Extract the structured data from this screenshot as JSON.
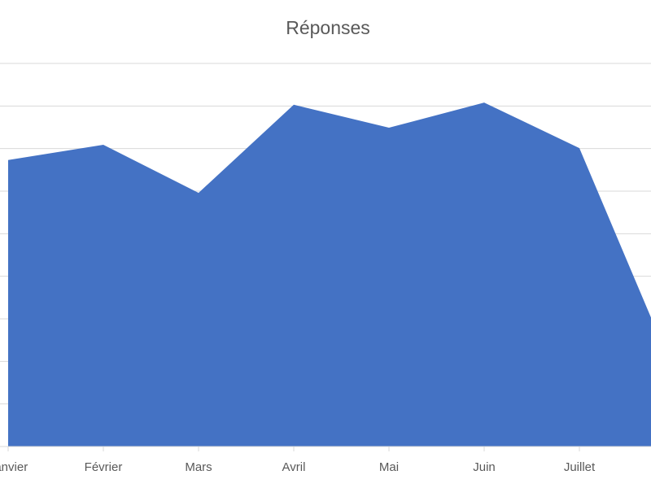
{
  "chart_data": {
    "type": "area",
    "title": "Réponses",
    "categories": [
      "Janvier",
      "Février",
      "Mars",
      "Avril",
      "Mai",
      "Juin",
      "Juillet",
      null
    ],
    "values": [
      6.73,
      7.09,
      5.96,
      8.03,
      7.49,
      8.08,
      7.01,
      1.72
    ],
    "color": "#4472c4",
    "ylim": [
      0,
      9
    ],
    "yticks": [
      0,
      1,
      2,
      3,
      4,
      5,
      6,
      7,
      8,
      9
    ],
    "grid": true
  }
}
